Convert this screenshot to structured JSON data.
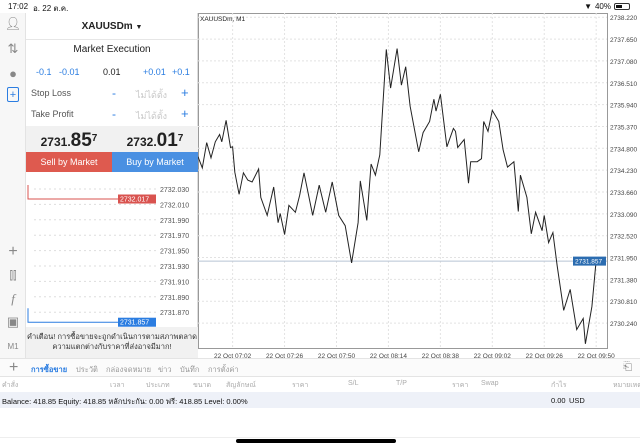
{
  "status_bar": {
    "time": "17:02",
    "date": "อ. 22 ต.ค.",
    "battery": "40%",
    "battery_level": 0.4
  },
  "left_toolbar": {
    "icons": [
      "account-icon",
      "trade-arrows-icon",
      "chat-icon",
      "new-order-icon",
      "crosshair-icon",
      "chart-type-icon",
      "indicators-icon",
      "objects-icon"
    ],
    "timeframe": "M1"
  },
  "order_panel": {
    "symbol": "XAUUSDm",
    "execution": "Market Execution",
    "lot_buttons": [
      "-0.1",
      "-0.01",
      "+0.01",
      "+0.1"
    ],
    "volume": "0.01",
    "stop_loss": {
      "label": "Stop Loss",
      "placeholder": "ไม่ได้ตั้ง",
      "minus": "-",
      "plus": "+"
    },
    "take_profit": {
      "label": "Take Profit",
      "placeholder": "ไม่ได้ตั้ง",
      "minus": "-",
      "plus": "+"
    },
    "bid": {
      "prefix": "2731.",
      "big": "85",
      "sup": "7"
    },
    "ask": {
      "prefix": "2732.",
      "big": "01",
      "sup": "7"
    },
    "sell_label": "Sell by Market",
    "buy_label": "Buy by Market",
    "mini_chart": {
      "levels": [
        "2732.030",
        "2732.010",
        "2731.990",
        "2731.970",
        "2731.950",
        "2731.930",
        "2731.910",
        "2731.890",
        "2731.870"
      ],
      "ask_tag": "2732.017",
      "bid_tag": "2731.857",
      "ask_color": "#d9534f",
      "bid_color": "#2b7de1"
    },
    "warning": "คำเตือน! การซื้อขายจะถูกดำเนินการตามสภาพตลาด ความแตกต่างกับราคาที่ส่งอาจมีมาก!",
    "sell_color": "#de5a4f",
    "buy_color": "#4a90e2"
  },
  "chart_data": {
    "type": "line",
    "title": "XAUUSDm, M1",
    "xlim": [
      "06:46",
      "09:55"
    ],
    "ylim": [
      2729.59,
      2738.33
    ],
    "grid": true,
    "x_tick_labels": [
      "22 Oct 07:02",
      "22 Oct 07:26",
      "22 Oct 07:50",
      "22 Oct 08:14",
      "22 Oct 08:38",
      "22 Oct 09:02",
      "22 Oct 09:26",
      "22 Oct 09:50"
    ],
    "x_ticks": [
      "07:02",
      "07:26",
      "07:50",
      "08:14",
      "08:38",
      "09:02",
      "09:26",
      "09:50"
    ],
    "y_ticks": [
      "2738.220",
      "2737.650",
      "2737.080",
      "2736.510",
      "2735.940",
      "2735.370",
      "2734.800",
      "2734.230",
      "2733.660",
      "2733.090",
      "2732.520",
      "2731.950",
      "2731.380",
      "2730.810",
      "2730.240"
    ],
    "current_price": "2731.857",
    "current_price_color": "#2b6cb0",
    "x": [
      "06:46",
      "06:48",
      "06:50",
      "06:52",
      "06:54",
      "06:56",
      "06:57",
      "06:59",
      "07:01",
      "07:02",
      "07:03",
      "07:05",
      "07:07",
      "07:09",
      "07:11",
      "07:14",
      "07:15",
      "07:18",
      "07:21",
      "07:23",
      "07:24",
      "07:26",
      "07:28",
      "07:31",
      "07:33",
      "07:35",
      "07:39",
      "07:42",
      "07:45",
      "07:48",
      "07:51",
      "07:54",
      "07:57",
      "08:00",
      "08:01",
      "08:04",
      "08:06",
      "08:08",
      "08:10",
      "08:13",
      "08:15",
      "08:18",
      "08:20",
      "08:22",
      "08:24",
      "08:28",
      "08:30",
      "08:33",
      "08:35",
      "08:36",
      "08:38",
      "08:41",
      "08:44",
      "08:45",
      "08:46",
      "08:49",
      "08:51",
      "08:52",
      "08:55",
      "08:57",
      "08:58",
      "09:00",
      "09:02",
      "09:05",
      "09:07",
      "09:09",
      "09:12",
      "09:14",
      "09:15",
      "09:18",
      "09:20",
      "09:22",
      "09:25",
      "09:26",
      "09:28",
      "09:30",
      "09:32",
      "09:35",
      "09:38",
      "09:41",
      "09:44",
      "09:45",
      "09:48",
      "09:50",
      "09:52"
    ],
    "y": [
      2734.58,
      2734.29,
      2734.95,
      2734.55,
      2734.97,
      2735.16,
      2734.97,
      2735.53,
      2734.82,
      2734.84,
      2734.18,
      2733.6,
      2734.16,
      2733.97,
      2733.92,
      2734.26,
      2733.52,
      2733.05,
      2733.79,
      2732.86,
      2733.1,
      2732.55,
      2733.31,
      2733.13,
      2733.58,
      2734.16,
      2733.05,
      2733.84,
      2733.13,
      2733.92,
      2733.05,
      2732.78,
      2731.81,
      2732.86,
      2733.95,
      2732.92,
      2734.39,
      2734.1,
      2734.63,
      2737.38,
      2736.37,
      2737.4,
      2736.45,
      2736.93,
      2735.9,
      2734.71,
      2735.21,
      2735.5,
      2736.08,
      2735.77,
      2736.21,
      2734.84,
      2735.32,
      2735.24,
      2734.82,
      2735.03,
      2733.89,
      2734.45,
      2734.45,
      2734.53,
      2735.5,
      2735.24,
      2735.79,
      2735.5,
      2734.76,
      2734.31,
      2734.45,
      2733.15,
      2734.1,
      2733.52,
      2732.57,
      2733.13,
      2732.65,
      2733.05,
      2732.34,
      2732.6,
      2731.73,
      2730.57,
      2731.12,
      2730.07,
      2730.36,
      2729.7,
      2730.67,
      2731.89,
      2731.86
    ]
  },
  "bottom": {
    "tabs": [
      "การซื้อขาย",
      "ประวัติ",
      "กล่องจดหมาย",
      "ข่าว",
      "บันทึก",
      "การตั้งค่า"
    ],
    "active_tab": 0,
    "columns": [
      "คำสั่ง",
      "เวลา",
      "ประเภท",
      "ขนาด",
      "สัญลักษณ์",
      "ราคา",
      "S/L",
      "T/P",
      "ราคา",
      "Swap",
      "กำไร",
      "หมายเหตุ"
    ],
    "balance_line": "Balance: 418.85 Equity: 418.85 หลักประกัน: 0.00 ฟรี: 418.85 Level: 0.00%",
    "profit": "0.00",
    "currency": "USD"
  }
}
